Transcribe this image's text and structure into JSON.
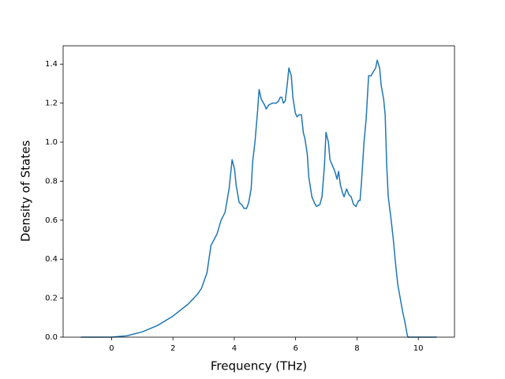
{
  "chart_data": {
    "type": "line",
    "xlabel": "Frequency (THz)",
    "ylabel": "Density of States",
    "xlim": [
      -1.58,
      11.18
    ],
    "ylim": [
      0,
      1.494
    ],
    "xticks": [
      0,
      2,
      4,
      6,
      8,
      10
    ],
    "yticks": [
      {
        "value": 0,
        "label": "0.0"
      },
      0.2,
      0.4,
      0.6,
      0.8,
      {
        "value": 1,
        "label": "1.0"
      },
      1.2,
      1.4
    ],
    "series": [
      {
        "color": "#1f77b4",
        "x": [
          -1.0,
          -0.5,
          0,
          0.5,
          1.0,
          1.5,
          2.0,
          2.5,
          2.8,
          2.93,
          3.11,
          3.24,
          3.44,
          3.57,
          3.7,
          3.83,
          3.93,
          4.01,
          4.06,
          4.16,
          4.24,
          4.32,
          4.4,
          4.47,
          4.55,
          4.6,
          4.68,
          4.76,
          4.81,
          4.88,
          4.99,
          5.04,
          5.12,
          5.24,
          5.37,
          5.44,
          5.5,
          5.55,
          5.6,
          5.66,
          5.73,
          5.78,
          5.86,
          5.91,
          5.99,
          6.04,
          6.12,
          6.19,
          6.25,
          6.3,
          6.38,
          6.43,
          6.53,
          6.61,
          6.68,
          6.79,
          6.86,
          6.94,
          6.99,
          7.07,
          7.12,
          7.2,
          7.28,
          7.35,
          7.4,
          7.46,
          7.53,
          7.58,
          7.66,
          7.74,
          7.81,
          7.89,
          7.97,
          8.05,
          8.1,
          8.15,
          8.23,
          8.3,
          8.38,
          8.46,
          8.53,
          8.61,
          8.66,
          8.74,
          8.79,
          8.87,
          8.92,
          8.97,
          9.02,
          9.1,
          9.18,
          9.25,
          9.33,
          9.41,
          9.49,
          9.56,
          9.64,
          9.67,
          10.0,
          10.6
        ],
        "values": [
          0,
          0,
          0,
          0.007,
          0.027,
          0.06,
          0.108,
          0.17,
          0.22,
          0.25,
          0.33,
          0.47,
          0.53,
          0.6,
          0.64,
          0.76,
          0.91,
          0.86,
          0.78,
          0.69,
          0.68,
          0.66,
          0.66,
          0.69,
          0.76,
          0.9,
          1.01,
          1.16,
          1.27,
          1.22,
          1.19,
          1.17,
          1.19,
          1.2,
          1.2,
          1.21,
          1.23,
          1.23,
          1.2,
          1.21,
          1.3,
          1.38,
          1.34,
          1.23,
          1.15,
          1.13,
          1.14,
          1.14,
          1.05,
          1.02,
          0.94,
          0.82,
          0.72,
          0.69,
          0.67,
          0.68,
          0.72,
          0.88,
          1.05,
          1.0,
          0.91,
          0.88,
          0.85,
          0.81,
          0.85,
          0.78,
          0.74,
          0.72,
          0.76,
          0.73,
          0.72,
          0.68,
          0.67,
          0.7,
          0.7,
          0.8,
          1.0,
          1.12,
          1.34,
          1.34,
          1.36,
          1.38,
          1.42,
          1.38,
          1.29,
          1.22,
          1.14,
          0.88,
          0.72,
          0.62,
          0.51,
          0.39,
          0.27,
          0.2,
          0.13,
          0.08,
          0.01,
          0,
          0,
          0
        ]
      }
    ]
  }
}
